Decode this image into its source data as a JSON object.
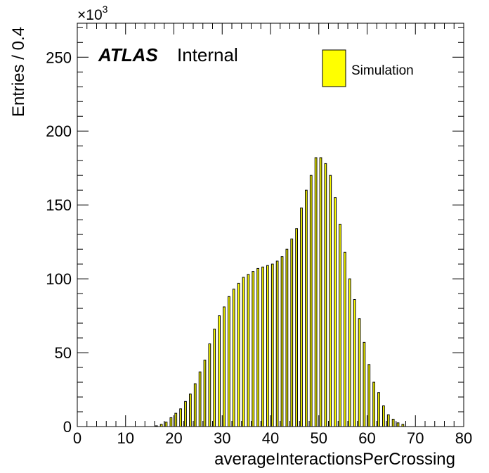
{
  "chart_data": {
    "type": "bar",
    "xlabel": "averageInteractionsPerCrossing",
    "ylabel": "Entries / 0.4",
    "y_multiplier": "×10",
    "y_multiplier_exponent": "3",
    "bin_width": 0.4,
    "xlim": [
      0,
      80
    ],
    "ylim": [
      0,
      273
    ],
    "x_ticks": [
      0,
      10,
      20,
      30,
      40,
      50,
      60,
      70,
      80
    ],
    "y_ticks": [
      0,
      50,
      100,
      150,
      200,
      250
    ],
    "label_bold": "ATLAS",
    "label_status": "Internal",
    "series": [
      {
        "name": "Simulation",
        "color": "#ffff00",
        "x": [
          16.2,
          17.2,
          18.2,
          19.2,
          20.2,
          21.2,
          22.2,
          23.2,
          24.2,
          25.2,
          26.2,
          27.2,
          28.2,
          29.2,
          30.2,
          31.2,
          32.2,
          33.2,
          34.2,
          35.2,
          36.2,
          37.2,
          38.2,
          39.2,
          40.2,
          41.2,
          42.2,
          43.2,
          44.2,
          45.2,
          46.2,
          47.2,
          48.2,
          49.2,
          50.2,
          51.2,
          52.2,
          53.2,
          54.2,
          55.2,
          56.2,
          57.2,
          58.2,
          59.2,
          60.2,
          61.2,
          62.2,
          63.2,
          64.2,
          65.2,
          66.2,
          67.2
        ],
        "values": [
          0.5,
          1.5,
          3,
          6,
          9,
          12,
          17,
          22,
          29,
          37,
          45,
          56,
          66,
          75,
          81,
          88,
          93,
          97,
          101,
          103,
          105,
          107,
          108,
          109,
          110,
          112,
          115,
          120,
          127,
          134,
          148,
          160,
          170,
          182,
          182,
          178,
          170,
          155,
          137,
          118,
          100,
          86,
          73,
          57,
          42,
          30,
          23,
          14,
          8,
          5,
          2.5,
          1.5
        ]
      }
    ]
  }
}
